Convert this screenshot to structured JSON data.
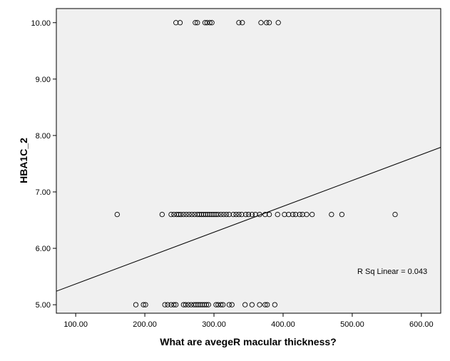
{
  "chart_data": {
    "type": "scatter",
    "xlabel": "What are avegeR macular thickness?",
    "ylabel": "HBA1C_2",
    "xlim": [
      72,
      628
    ],
    "ylim": [
      4.85,
      10.25
    ],
    "x_ticks": [
      100,
      200,
      300,
      400,
      500,
      600
    ],
    "x_tick_labels": [
      "100.00",
      "200.00",
      "300.00",
      "400.00",
      "500.00",
      "600.00"
    ],
    "y_ticks": [
      5,
      6,
      7,
      8,
      9,
      10
    ],
    "y_tick_labels": [
      "5.00",
      "6.00",
      "7.00",
      "8.00",
      "9.00",
      "10.00"
    ],
    "annotation": "R Sq Linear = 0.043",
    "fit_line": {
      "x": [
        72,
        628
      ],
      "y": [
        5.24,
        7.79
      ]
    },
    "colors": {
      "plot_background": "#f0f0f0",
      "marker_edge": "#000000",
      "line": "#000000"
    },
    "series": [
      {
        "points": [
          [
            245,
            10
          ],
          [
            251,
            10
          ],
          [
            273,
            10
          ],
          [
            276,
            10
          ],
          [
            287,
            10
          ],
          [
            290,
            10
          ],
          [
            294,
            10
          ],
          [
            297,
            10
          ],
          [
            336,
            10
          ],
          [
            341,
            10
          ],
          [
            368,
            10
          ],
          [
            376,
            10
          ],
          [
            380,
            10
          ],
          [
            393,
            10
          ],
          [
            160,
            6.6
          ],
          [
            225,
            6.6
          ],
          [
            238,
            6.6
          ],
          [
            242,
            6.6
          ],
          [
            246,
            6.6
          ],
          [
            249,
            6.6
          ],
          [
            252,
            6.6
          ],
          [
            256,
            6.6
          ],
          [
            260,
            6.6
          ],
          [
            264,
            6.6
          ],
          [
            268,
            6.6
          ],
          [
            272,
            6.6
          ],
          [
            276,
            6.6
          ],
          [
            279,
            6.6
          ],
          [
            282,
            6.6
          ],
          [
            285,
            6.6
          ],
          [
            288,
            6.6
          ],
          [
            291,
            6.6
          ],
          [
            294,
            6.6
          ],
          [
            297,
            6.6
          ],
          [
            300,
            6.6
          ],
          [
            303,
            6.6
          ],
          [
            306,
            6.6
          ],
          [
            310,
            6.6
          ],
          [
            314,
            6.6
          ],
          [
            318,
            6.6
          ],
          [
            322,
            6.6
          ],
          [
            328,
            6.6
          ],
          [
            332,
            6.6
          ],
          [
            336,
            6.6
          ],
          [
            340,
            6.6
          ],
          [
            346,
            6.6
          ],
          [
            350,
            6.6
          ],
          [
            355,
            6.6
          ],
          [
            360,
            6.6
          ],
          [
            366,
            6.6
          ],
          [
            374,
            6.6
          ],
          [
            380,
            6.6
          ],
          [
            392,
            6.6
          ],
          [
            402,
            6.6
          ],
          [
            408,
            6.6
          ],
          [
            414,
            6.6
          ],
          [
            418,
            6.6
          ],
          [
            424,
            6.6
          ],
          [
            428,
            6.6
          ],
          [
            434,
            6.6
          ],
          [
            442,
            6.6
          ],
          [
            470,
            6.6
          ],
          [
            485,
            6.6
          ],
          [
            562,
            6.6
          ],
          [
            187,
            5
          ],
          [
            198,
            5
          ],
          [
            201,
            5
          ],
          [
            229,
            5
          ],
          [
            233,
            5
          ],
          [
            238,
            5
          ],
          [
            242,
            5
          ],
          [
            245,
            5
          ],
          [
            256,
            5
          ],
          [
            259,
            5
          ],
          [
            263,
            5
          ],
          [
            267,
            5
          ],
          [
            271,
            5
          ],
          [
            274,
            5
          ],
          [
            277,
            5
          ],
          [
            280,
            5
          ],
          [
            283,
            5
          ],
          [
            286,
            5
          ],
          [
            289,
            5
          ],
          [
            292,
            5
          ],
          [
            303,
            5
          ],
          [
            306,
            5
          ],
          [
            310,
            5
          ],
          [
            313,
            5
          ],
          [
            322,
            5
          ],
          [
            326,
            5
          ],
          [
            345,
            5
          ],
          [
            355,
            5
          ],
          [
            366,
            5
          ],
          [
            374,
            5
          ],
          [
            377,
            5
          ],
          [
            388,
            5
          ]
        ]
      }
    ]
  }
}
